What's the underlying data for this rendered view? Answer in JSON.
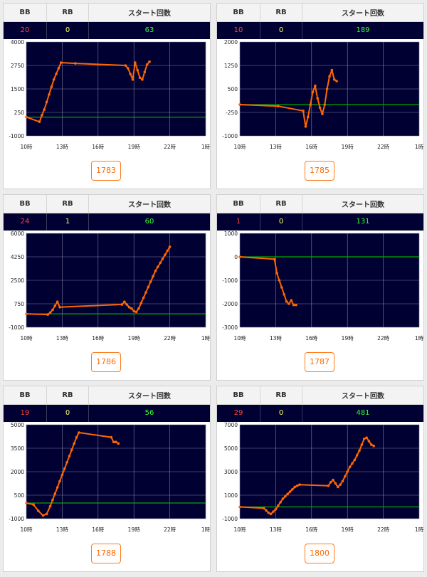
{
  "headers": {
    "bb": "BB",
    "rb": "RB",
    "start": "スタート回数"
  },
  "colors": {
    "plot_bg": "#000033",
    "line": "#ff6600",
    "baseline": "#00aa00",
    "grid": "#8080a0",
    "bb_text": "#ff4444",
    "rb_text": "#ffff66",
    "start_text": "#33ff33",
    "button": "#ff6600"
  },
  "machines": [
    {
      "bb": "20",
      "rb": "0",
      "start": "63",
      "number": "1783"
    },
    {
      "bb": "10",
      "rb": "0",
      "start": "189",
      "number": "1785"
    },
    {
      "bb": "24",
      "rb": "1",
      "start": "60",
      "number": "1786"
    },
    {
      "bb": "1",
      "rb": "0",
      "start": "131",
      "number": "1787"
    },
    {
      "bb": "19",
      "rb": "0",
      "start": "56",
      "number": "1788"
    },
    {
      "bb": "29",
      "rb": "0",
      "start": "481",
      "number": "1800"
    }
  ],
  "chart_data": [
    {
      "type": "line",
      "x_ticks": [
        "10時",
        "13時",
        "16時",
        "19時",
        "22時",
        "1時"
      ],
      "xlim": [
        10,
        25
      ],
      "y_ticks": [
        "4000",
        "2750",
        "1500",
        "250",
        "-1000"
      ],
      "ylim": [
        -1000,
        4000
      ],
      "baseline": 0,
      "series": [
        {
          "x": [
            10,
            11.1,
            11.3,
            11.5,
            11.7,
            11.9,
            12.1,
            12.3,
            12.5,
            12.7,
            12.9,
            14.1,
            18.3,
            18.5,
            18.7,
            18.9,
            19.1,
            19.3,
            19.5,
            19.7,
            19.9,
            20.1,
            20.3
          ],
          "y": [
            0,
            -250,
            100,
            400,
            800,
            1200,
            1600,
            2000,
            2300,
            2600,
            2900,
            2860,
            2750,
            2600,
            2300,
            2000,
            2900,
            2500,
            2100,
            2000,
            2400,
            2800,
            2950
          ]
        }
      ]
    },
    {
      "type": "line",
      "x_ticks": [
        "10時",
        "13時",
        "16時",
        "19時",
        "22時",
        "1時"
      ],
      "xlim": [
        10,
        25
      ],
      "y_ticks": [
        "2000",
        "1250",
        "500",
        "-250",
        "-1000"
      ],
      "ylim": [
        -1000,
        2000
      ],
      "baseline": 0,
      "series": [
        {
          "x": [
            10,
            13.2,
            15.3,
            15.5,
            15.7,
            15.9,
            16.1,
            16.3,
            16.5,
            16.7,
            16.9,
            17.1,
            17.3,
            17.5,
            17.7,
            17.9,
            18.1
          ],
          "y": [
            0,
            -50,
            -200,
            -700,
            -400,
            0,
            400,
            600,
            200,
            -100,
            -300,
            0,
            500,
            900,
            1100,
            800,
            750
          ]
        }
      ]
    },
    {
      "type": "line",
      "x_ticks": [
        "10時",
        "13時",
        "16時",
        "19時",
        "22時",
        "1時"
      ],
      "xlim": [
        10,
        25
      ],
      "y_ticks": [
        "6000",
        "4250",
        "2500",
        "750",
        "-1000"
      ],
      "ylim": [
        -1000,
        6000
      ],
      "baseline": 0,
      "series": [
        {
          "x": [
            10,
            11.8,
            12,
            12.2,
            12.4,
            12.6,
            12.8,
            18,
            18.2,
            18.4,
            18.6,
            18.8,
            19,
            19.2,
            19.4,
            19.6,
            19.8,
            20,
            20.2,
            20.4,
            20.6,
            20.8,
            21,
            21.2,
            21.4,
            21.6,
            21.8,
            22
          ],
          "y": [
            0,
            -50,
            100,
            300,
            600,
            900,
            500,
            700,
            900,
            700,
            500,
            400,
            200,
            150,
            400,
            800,
            1200,
            1600,
            2000,
            2400,
            2800,
            3200,
            3500,
            3800,
            4100,
            4400,
            4700,
            5000
          ]
        }
      ]
    },
    {
      "type": "line",
      "x_ticks": [
        "10時",
        "13時",
        "16時",
        "19時",
        "22時",
        "1時"
      ],
      "xlim": [
        10,
        25
      ],
      "y_ticks": [
        "1000",
        "0",
        "-1000",
        "-2000",
        "-3000"
      ],
      "ylim": [
        -3000,
        1000
      ],
      "baseline": 0,
      "series": [
        {
          "x": [
            10,
            12.9,
            13.1,
            13.3,
            13.5,
            13.7,
            13.9,
            14.1,
            14.3,
            14.5,
            14.7
          ],
          "y": [
            0,
            -100,
            -700,
            -1000,
            -1300,
            -1600,
            -1900,
            -2000,
            -1850,
            -2050,
            -2050
          ]
        }
      ]
    },
    {
      "type": "line",
      "x_ticks": [
        "10時",
        "13時",
        "16時",
        "19時",
        "22時",
        "1時"
      ],
      "xlim": [
        10,
        25
      ],
      "y_ticks": [
        "5000",
        "3500",
        "2000",
        "500",
        "-1000"
      ],
      "ylim": [
        -1000,
        5000
      ],
      "baseline": 0,
      "series": [
        {
          "x": [
            10,
            10.6,
            11,
            11.4,
            11.7,
            12,
            12.2,
            12.4,
            12.6,
            12.8,
            13,
            13.2,
            13.4,
            13.6,
            13.8,
            14,
            14.2,
            14.4,
            17.1,
            17.3,
            17.5,
            17.7
          ],
          "y": [
            0,
            -100,
            -500,
            -800,
            -700,
            -200,
            200,
            600,
            1000,
            1400,
            1800,
            2200,
            2600,
            3000,
            3400,
            3800,
            4200,
            4500,
            4200,
            3900,
            3900,
            3800
          ]
        }
      ]
    },
    {
      "type": "line",
      "x_ticks": [
        "10時",
        "13時",
        "16時",
        "19時",
        "22時",
        "1時"
      ],
      "xlim": [
        10,
        25
      ],
      "y_ticks": [
        "7000",
        "5000",
        "3000",
        "1000",
        "-1000"
      ],
      "ylim": [
        -1000,
        7000
      ],
      "baseline": 0,
      "series": [
        {
          "x": [
            10,
            12,
            12.2,
            12.4,
            12.6,
            12.8,
            13,
            13.2,
            13.4,
            13.6,
            13.8,
            14,
            14.2,
            14.4,
            14.6,
            14.8,
            15,
            17.4,
            17.6,
            17.8,
            18,
            18.2,
            18.4,
            18.6,
            18.8,
            19,
            19.2,
            19.4,
            19.6,
            19.8,
            20,
            20.2,
            20.4,
            20.6,
            20.8,
            21,
            21.2
          ],
          "y": [
            0,
            -100,
            -300,
            -500,
            -600,
            -400,
            -200,
            100,
            400,
            700,
            900,
            1100,
            1300,
            1500,
            1700,
            1800,
            1900,
            1800,
            2100,
            2300,
            2000,
            1700,
            1900,
            2200,
            2600,
            3000,
            3400,
            3700,
            4000,
            4400,
            4800,
            5300,
            5800,
            5900,
            5600,
            5300,
            5200
          ]
        }
      ]
    }
  ]
}
